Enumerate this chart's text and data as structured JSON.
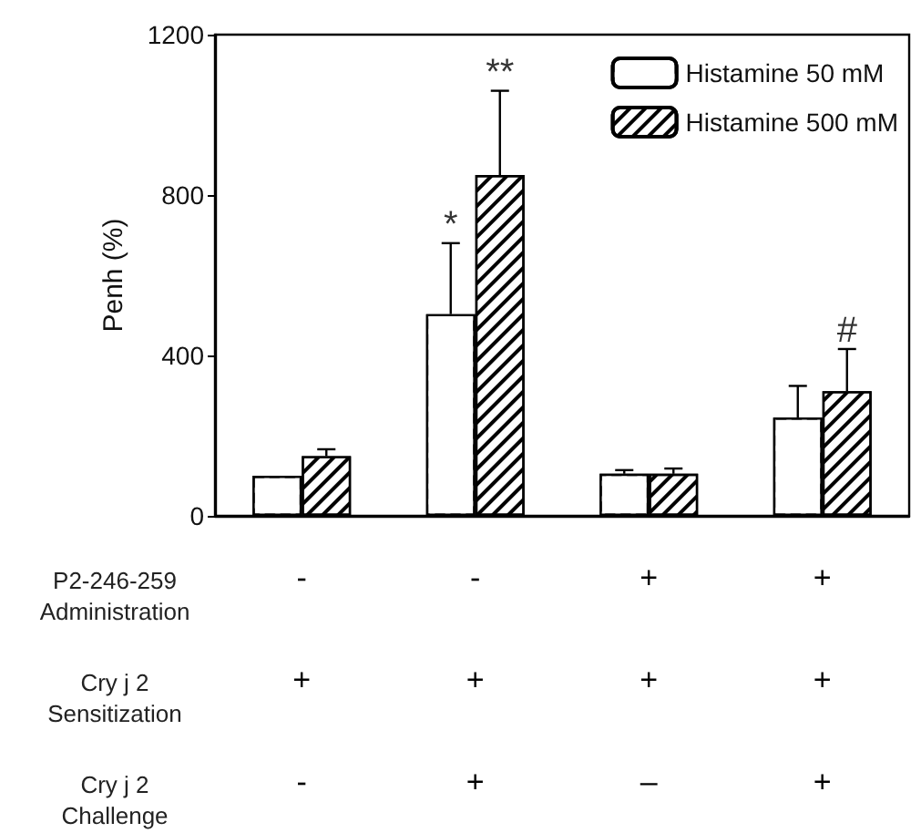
{
  "chart_data": {
    "type": "bar",
    "ylabel": "Penh (%)",
    "categories": [
      "-\n+\n-",
      "-\n+\n+",
      "+\n+\n–",
      "+\n+\n+"
    ],
    "series": [
      {
        "name": "Histamine 50 mM",
        "color": "#ffffff",
        "values": [
          100,
          503,
          105,
          245
        ],
        "errors": [
          null,
          [
            503,
            680
          ],
          [
            105,
            114
          ],
          [
            245,
            324
          ]
        ],
        "value_labels": [
          null,
          "*",
          null,
          null
        ]
      },
      {
        "name": "Histamine 500 mM",
        "color": "#000000",
        "values": [
          149,
          850,
          105,
          311
        ],
        "errors": [
          [
            149,
            166
          ],
          [
            850,
            1060
          ],
          [
            105,
            118
          ],
          [
            311,
            416
          ]
        ],
        "value_labels": [
          null,
          "**",
          null,
          "#"
        ]
      }
    ],
    "ylim": [
      0,
      1200
    ],
    "yticks": [
      0,
      400,
      800,
      1200
    ],
    "grid": false,
    "legend": "top right",
    "annotations": [
      "P2-246-259\nAdministration",
      "Cry j 2\nSensitization",
      "Cry j 2\nChallenge"
    ]
  }
}
